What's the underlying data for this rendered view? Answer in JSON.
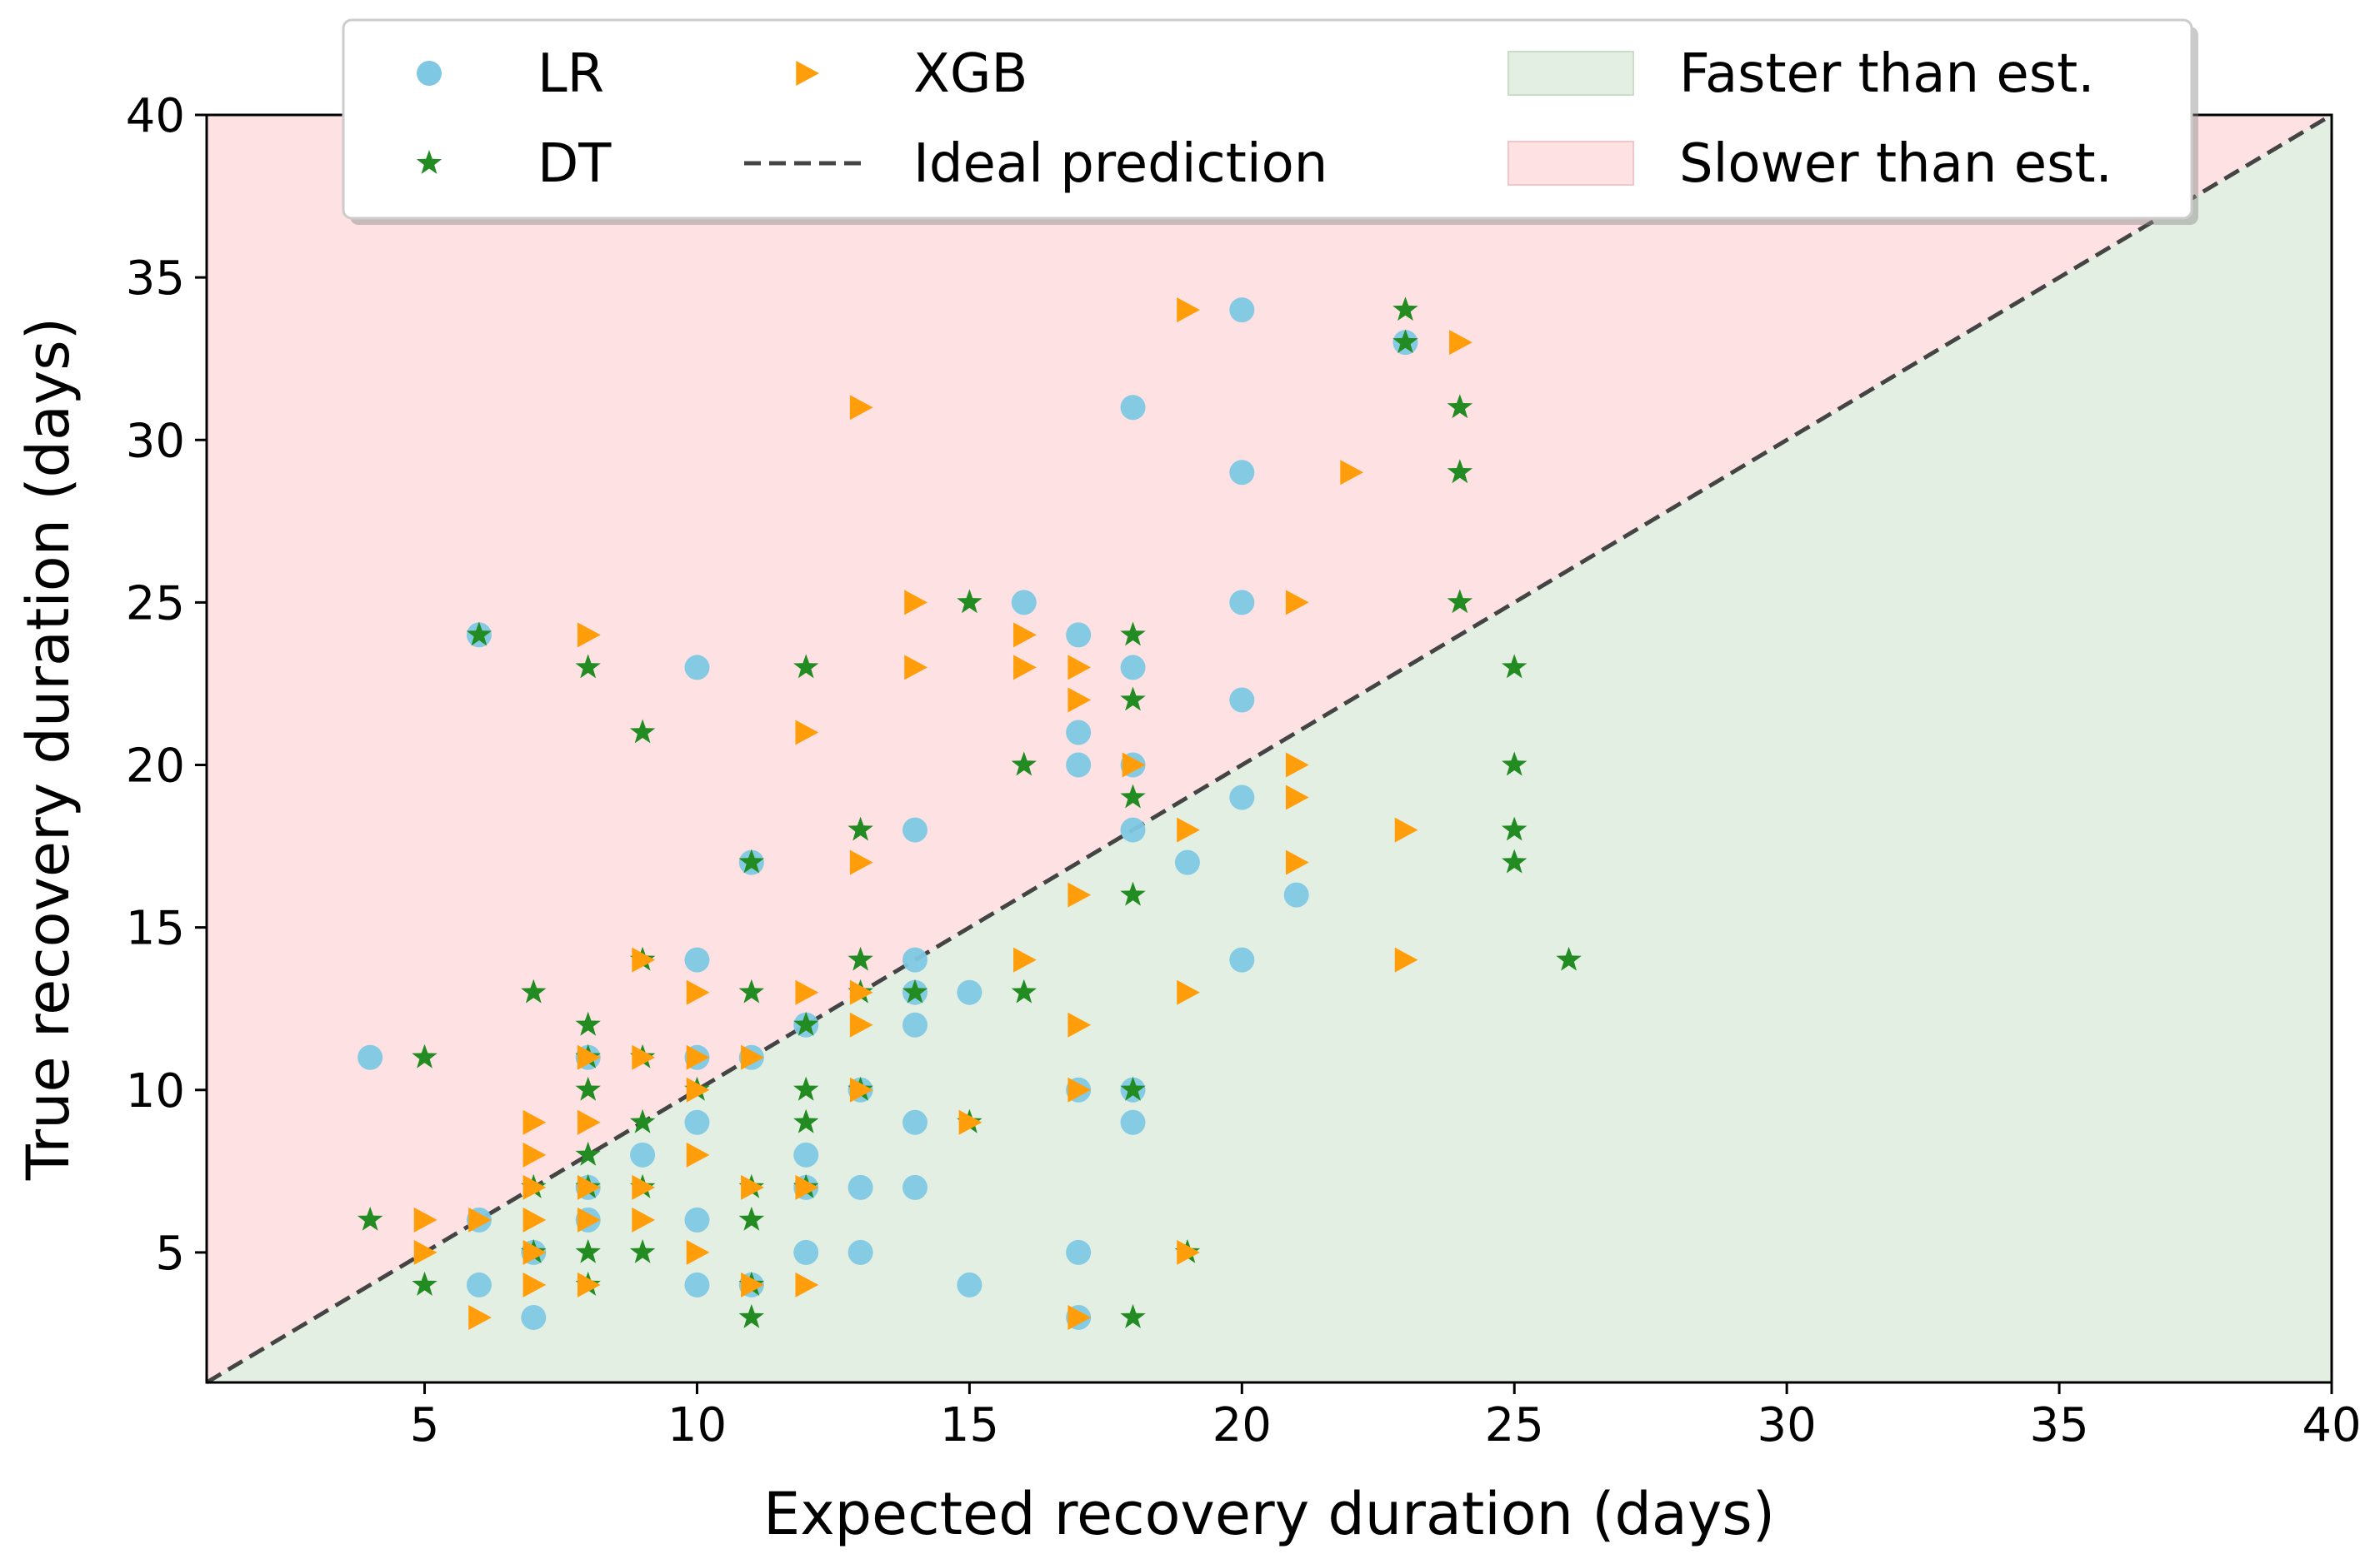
{
  "chart_data": {
    "type": "scatter",
    "title": "",
    "xlabel": "Expected recovery duration (days)",
    "ylabel": "True recovery duration (days)",
    "xlim": [
      1,
      40
    ],
    "ylim": [
      1,
      40
    ],
    "xticks": [
      5,
      10,
      15,
      20,
      25,
      30,
      35,
      40
    ],
    "yticks": [
      5,
      10,
      15,
      20,
      25,
      30,
      35,
      40
    ],
    "grid": false,
    "legend_position": "top-center",
    "regions": [
      {
        "name": "Faster than est.",
        "color": "#e3efe2",
        "side": "below-diagonal"
      },
      {
        "name": "Slower than est.",
        "color": "#fde1e3",
        "side": "above-diagonal"
      }
    ],
    "reference_line": {
      "name": "Ideal prediction",
      "from": [
        1,
        1
      ],
      "to": [
        40,
        40
      ],
      "style": "dashed",
      "color": "#444444"
    },
    "series": [
      {
        "name": "LR",
        "marker": "circle",
        "color": "#7ec8e3",
        "points": [
          [
            4,
            11
          ],
          [
            6,
            24
          ],
          [
            6,
            6
          ],
          [
            6,
            4
          ],
          [
            7,
            5
          ],
          [
            7,
            3
          ],
          [
            8,
            11
          ],
          [
            8,
            7
          ],
          [
            8,
            6
          ],
          [
            9,
            8
          ],
          [
            10,
            23
          ],
          [
            10,
            14
          ],
          [
            10,
            11
          ],
          [
            10,
            9
          ],
          [
            10,
            6
          ],
          [
            10,
            4
          ],
          [
            11,
            17
          ],
          [
            11,
            11
          ],
          [
            11,
            4
          ],
          [
            12,
            12
          ],
          [
            12,
            8
          ],
          [
            12,
            7
          ],
          [
            12,
            5
          ],
          [
            13,
            10
          ],
          [
            13,
            7
          ],
          [
            13,
            5
          ],
          [
            14,
            18
          ],
          [
            14,
            14
          ],
          [
            14,
            13
          ],
          [
            14,
            12
          ],
          [
            14,
            9
          ],
          [
            14,
            7
          ],
          [
            15,
            13
          ],
          [
            15,
            4
          ],
          [
            16,
            25
          ],
          [
            17,
            24
          ],
          [
            17,
            21
          ],
          [
            17,
            20
          ],
          [
            17,
            10
          ],
          [
            17,
            5
          ],
          [
            17,
            3
          ],
          [
            18,
            31
          ],
          [
            18,
            23
          ],
          [
            18,
            20
          ],
          [
            18,
            18
          ],
          [
            18,
            10
          ],
          [
            18,
            9
          ],
          [
            19,
            17
          ],
          [
            20,
            34
          ],
          [
            20,
            29
          ],
          [
            20,
            25
          ],
          [
            20,
            22
          ],
          [
            20,
            19
          ],
          [
            20,
            14
          ],
          [
            21,
            16
          ],
          [
            23,
            33
          ]
        ]
      },
      {
        "name": "DT",
        "marker": "star",
        "color": "#228b22",
        "points": [
          [
            4,
            6
          ],
          [
            5,
            11
          ],
          [
            5,
            4
          ],
          [
            6,
            24
          ],
          [
            7,
            13
          ],
          [
            7,
            7
          ],
          [
            7,
            5
          ],
          [
            8,
            23
          ],
          [
            8,
            12
          ],
          [
            8,
            11
          ],
          [
            8,
            10
          ],
          [
            8,
            8
          ],
          [
            8,
            7
          ],
          [
            8,
            5
          ],
          [
            8,
            4
          ],
          [
            9,
            21
          ],
          [
            9,
            14
          ],
          [
            9,
            11
          ],
          [
            9,
            9
          ],
          [
            9,
            7
          ],
          [
            9,
            5
          ],
          [
            10,
            10
          ],
          [
            11,
            17
          ],
          [
            11,
            13
          ],
          [
            11,
            7
          ],
          [
            11,
            6
          ],
          [
            11,
            4
          ],
          [
            11,
            3
          ],
          [
            12,
            23
          ],
          [
            12,
            12
          ],
          [
            12,
            10
          ],
          [
            12,
            9
          ],
          [
            12,
            7
          ],
          [
            13,
            18
          ],
          [
            13,
            14
          ],
          [
            13,
            13
          ],
          [
            13,
            10
          ],
          [
            14,
            13
          ],
          [
            15,
            25
          ],
          [
            15,
            9
          ],
          [
            16,
            20
          ],
          [
            16,
            13
          ],
          [
            18,
            24
          ],
          [
            18,
            22
          ],
          [
            18,
            19
          ],
          [
            18,
            16
          ],
          [
            18,
            10
          ],
          [
            18,
            3
          ],
          [
            19,
            5
          ],
          [
            23,
            34
          ],
          [
            23,
            33
          ],
          [
            24,
            31
          ],
          [
            24,
            29
          ],
          [
            24,
            25
          ],
          [
            25,
            23
          ],
          [
            25,
            20
          ],
          [
            25,
            18
          ],
          [
            25,
            17
          ],
          [
            26,
            14
          ]
        ]
      },
      {
        "name": "XGB",
        "marker": "triangle-right",
        "color": "#ff9e0a",
        "points": [
          [
            5,
            6
          ],
          [
            5,
            5
          ],
          [
            6,
            6
          ],
          [
            6,
            3
          ],
          [
            7,
            9
          ],
          [
            7,
            8
          ],
          [
            7,
            7
          ],
          [
            7,
            6
          ],
          [
            7,
            5
          ],
          [
            7,
            4
          ],
          [
            8,
            24
          ],
          [
            8,
            11
          ],
          [
            8,
            9
          ],
          [
            8,
            7
          ],
          [
            8,
            6
          ],
          [
            8,
            4
          ],
          [
            9,
            14
          ],
          [
            9,
            11
          ],
          [
            9,
            7
          ],
          [
            9,
            6
          ],
          [
            10,
            13
          ],
          [
            10,
            11
          ],
          [
            10,
            10
          ],
          [
            10,
            8
          ],
          [
            10,
            5
          ],
          [
            11,
            11
          ],
          [
            11,
            7
          ],
          [
            11,
            4
          ],
          [
            12,
            21
          ],
          [
            12,
            13
          ],
          [
            12,
            7
          ],
          [
            12,
            4
          ],
          [
            13,
            31
          ],
          [
            13,
            17
          ],
          [
            13,
            13
          ],
          [
            13,
            12
          ],
          [
            13,
            10
          ],
          [
            14,
            25
          ],
          [
            14,
            23
          ],
          [
            15,
            9
          ],
          [
            16,
            24
          ],
          [
            16,
            23
          ],
          [
            16,
            14
          ],
          [
            17,
            23
          ],
          [
            17,
            22
          ],
          [
            17,
            16
          ],
          [
            17,
            12
          ],
          [
            17,
            10
          ],
          [
            17,
            3
          ],
          [
            18,
            20
          ],
          [
            19,
            34
          ],
          [
            19,
            18
          ],
          [
            19,
            13
          ],
          [
            19,
            5
          ],
          [
            21,
            25
          ],
          [
            21,
            20
          ],
          [
            21,
            19
          ],
          [
            21,
            17
          ],
          [
            22,
            29
          ],
          [
            23,
            18
          ],
          [
            23,
            14
          ],
          [
            24,
            33
          ]
        ]
      }
    ],
    "legend": {
      "items": [
        {
          "label": "LR",
          "kind": "circle",
          "color": "#7ec8e3"
        },
        {
          "label": "DT",
          "kind": "star",
          "color": "#228b22"
        },
        {
          "label": "XGB",
          "kind": "triangle-right",
          "color": "#ff9e0a"
        },
        {
          "label": "Ideal prediction",
          "kind": "dashed-line",
          "color": "#444444"
        },
        {
          "label": "Faster than est.",
          "kind": "patch",
          "color": "#e3efe2"
        },
        {
          "label": "Slower than est.",
          "kind": "patch",
          "color": "#fde1e3"
        }
      ]
    }
  }
}
